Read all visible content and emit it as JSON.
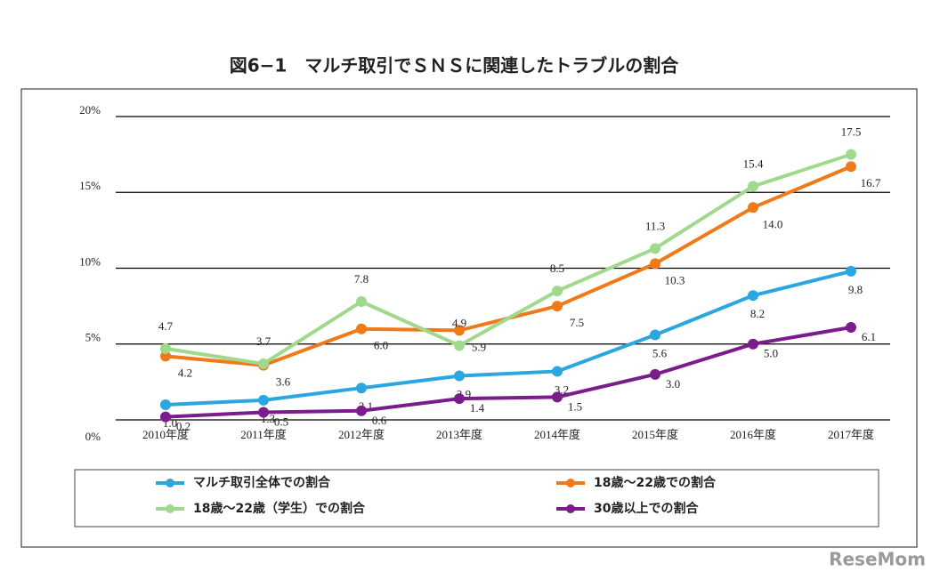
{
  "chart_data": {
    "type": "line",
    "title": "図6−1　マルチ取引でＳＮＳに関連したトラブルの割合",
    "categories": [
      "2010年度",
      "2011年度",
      "2012年度",
      "2013年度",
      "2014年度",
      "2015年度",
      "2016年度",
      "2017年度"
    ],
    "ylim": [
      0,
      20
    ],
    "yticks": [
      {
        "value": 0,
        "label": "0%"
      },
      {
        "value": 5,
        "label": "5%"
      },
      {
        "value": 10,
        "label": "10%"
      },
      {
        "value": 15,
        "label": "15%"
      },
      {
        "value": 20,
        "label": "20%"
      }
    ],
    "grid": true,
    "legend": "bottom",
    "watermark": "ReseMom",
    "series": [
      {
        "name": "マルチ取引全体での割合",
        "color": "#2aa6e0",
        "values": [
          1.0,
          1.3,
          2.1,
          2.9,
          3.2,
          5.6,
          8.2,
          9.8
        ],
        "value_labels": [
          "1.0",
          "1.3",
          "2.1",
          "2.9",
          "3.2",
          "5.6",
          "8.2",
          "9.8"
        ]
      },
      {
        "name": "18歳～22歳での割合",
        "color": "#f07a1a",
        "values": [
          4.2,
          3.6,
          6.0,
          5.9,
          7.5,
          10.3,
          14.0,
          16.7
        ],
        "value_labels": [
          "4.2",
          "3.6",
          "6.0",
          "5.9",
          "7.5",
          "10.3",
          "14.0",
          "16.7"
        ]
      },
      {
        "name": "18歳～22歳（学生）での割合",
        "color": "#a0d98c",
        "values": [
          4.7,
          3.7,
          7.8,
          4.9,
          8.5,
          11.3,
          15.4,
          17.5
        ],
        "value_labels": [
          "4.7",
          "3.7",
          "7.8",
          "4.9",
          "8.5",
          "11.3",
          "15.4",
          "17.5"
        ]
      },
      {
        "name": "30歳以上での割合",
        "color": "#7b1c8c",
        "values": [
          0.2,
          0.5,
          0.6,
          1.4,
          1.5,
          3.0,
          5.0,
          6.1
        ],
        "value_labels": [
          "0.2",
          "0.5",
          "0.6",
          "1.4",
          "1.5",
          "3.0",
          "5.0",
          "6.1"
        ]
      }
    ]
  }
}
